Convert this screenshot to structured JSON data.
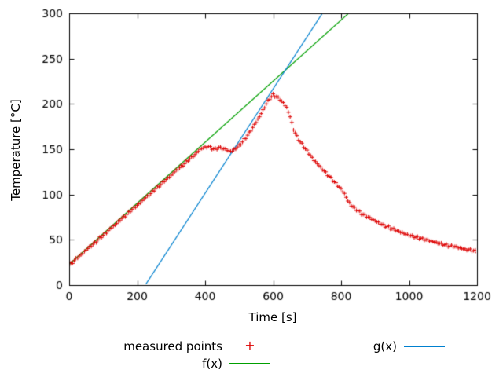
{
  "chart_data": {
    "type": "scatter",
    "title": "",
    "xlabel": "Time [s]",
    "ylabel": "Temperature [°C]",
    "xlim": [
      0,
      1200
    ],
    "ylim": [
      0,
      300
    ],
    "xticks": [
      0,
      200,
      400,
      600,
      800,
      1000,
      1200
    ],
    "yticks": [
      0,
      50,
      100,
      150,
      200,
      250,
      300
    ],
    "grid": false,
    "legend_position": "below-plot, two columns",
    "axis_color": "#000000",
    "series": [
      {
        "name": "measured points",
        "type": "points",
        "marker": "plus",
        "marker_glyph": "+",
        "color": "#dd0000",
        "points": [
          [
            0,
            22
          ],
          [
            10,
            25
          ],
          [
            20,
            29
          ],
          [
            30,
            32
          ],
          [
            40,
            35
          ],
          [
            50,
            39
          ],
          [
            60,
            42
          ],
          [
            70,
            45
          ],
          [
            80,
            48
          ],
          [
            90,
            52
          ],
          [
            100,
            55
          ],
          [
            110,
            58
          ],
          [
            120,
            62
          ],
          [
            130,
            65
          ],
          [
            140,
            68
          ],
          [
            150,
            72
          ],
          [
            160,
            75
          ],
          [
            170,
            78
          ],
          [
            180,
            82
          ],
          [
            190,
            85
          ],
          [
            200,
            88
          ],
          [
            210,
            91
          ],
          [
            220,
            95
          ],
          [
            230,
            98
          ],
          [
            240,
            101
          ],
          [
            250,
            105
          ],
          [
            260,
            108
          ],
          [
            270,
            111
          ],
          [
            280,
            115
          ],
          [
            290,
            118
          ],
          [
            300,
            121
          ],
          [
            310,
            125
          ],
          [
            320,
            128
          ],
          [
            330,
            131
          ],
          [
            340,
            134
          ],
          [
            350,
            138
          ],
          [
            360,
            141
          ],
          [
            370,
            144
          ],
          [
            380,
            148
          ],
          [
            390,
            151
          ],
          [
            400,
            152
          ],
          [
            410,
            153
          ],
          [
            420,
            151
          ],
          [
            430,
            150
          ],
          [
            440,
            152
          ],
          [
            450,
            151
          ],
          [
            460,
            150
          ],
          [
            470,
            148
          ],
          [
            480,
            148
          ],
          [
            490,
            151
          ],
          [
            500,
            154
          ],
          [
            510,
            158
          ],
          [
            520,
            163
          ],
          [
            530,
            168
          ],
          [
            540,
            174
          ],
          [
            550,
            180
          ],
          [
            560,
            186
          ],
          [
            570,
            193
          ],
          [
            580,
            200
          ],
          [
            590,
            206
          ],
          [
            600,
            210
          ],
          [
            610,
            208
          ],
          [
            620,
            205
          ],
          [
            630,
            201
          ],
          [
            640,
            196
          ],
          [
            650,
            186
          ],
          [
            660,
            172
          ],
          [
            670,
            164
          ],
          [
            680,
            158
          ],
          [
            690,
            153
          ],
          [
            700,
            148
          ],
          [
            710,
            143
          ],
          [
            720,
            138
          ],
          [
            730,
            134
          ],
          [
            740,
            130
          ],
          [
            750,
            126
          ],
          [
            760,
            122
          ],
          [
            770,
            118
          ],
          [
            780,
            114
          ],
          [
            790,
            110
          ],
          [
            800,
            106
          ],
          [
            810,
            101
          ],
          [
            820,
            93
          ],
          [
            830,
            88
          ],
          [
            840,
            85
          ],
          [
            850,
            82
          ],
          [
            860,
            79
          ],
          [
            870,
            77
          ],
          [
            880,
            75
          ],
          [
            890,
            73
          ],
          [
            900,
            71
          ],
          [
            910,
            69
          ],
          [
            920,
            67
          ],
          [
            930,
            65
          ],
          [
            940,
            64
          ],
          [
            950,
            62
          ],
          [
            960,
            61
          ],
          [
            970,
            59
          ],
          [
            980,
            58
          ],
          [
            990,
            56
          ],
          [
            1000,
            55
          ],
          [
            1010,
            54
          ],
          [
            1020,
            53
          ],
          [
            1030,
            52
          ],
          [
            1040,
            51
          ],
          [
            1050,
            50
          ],
          [
            1060,
            49
          ],
          [
            1070,
            48
          ],
          [
            1080,
            47
          ],
          [
            1090,
            46
          ],
          [
            1100,
            45
          ],
          [
            1110,
            44
          ],
          [
            1120,
            43
          ],
          [
            1130,
            43
          ],
          [
            1140,
            42
          ],
          [
            1150,
            41
          ],
          [
            1160,
            40
          ],
          [
            1170,
            39
          ],
          [
            1180,
            39
          ],
          [
            1190,
            38
          ],
          [
            1200,
            37
          ]
        ]
      },
      {
        "name": "f(x)",
        "type": "line",
        "color": "#00a000",
        "slope": 0.337,
        "intercept": 23
      },
      {
        "name": "g(x)",
        "type": "line",
        "color": "#0080cf",
        "slope": 0.576,
        "intercept": -129
      }
    ]
  }
}
